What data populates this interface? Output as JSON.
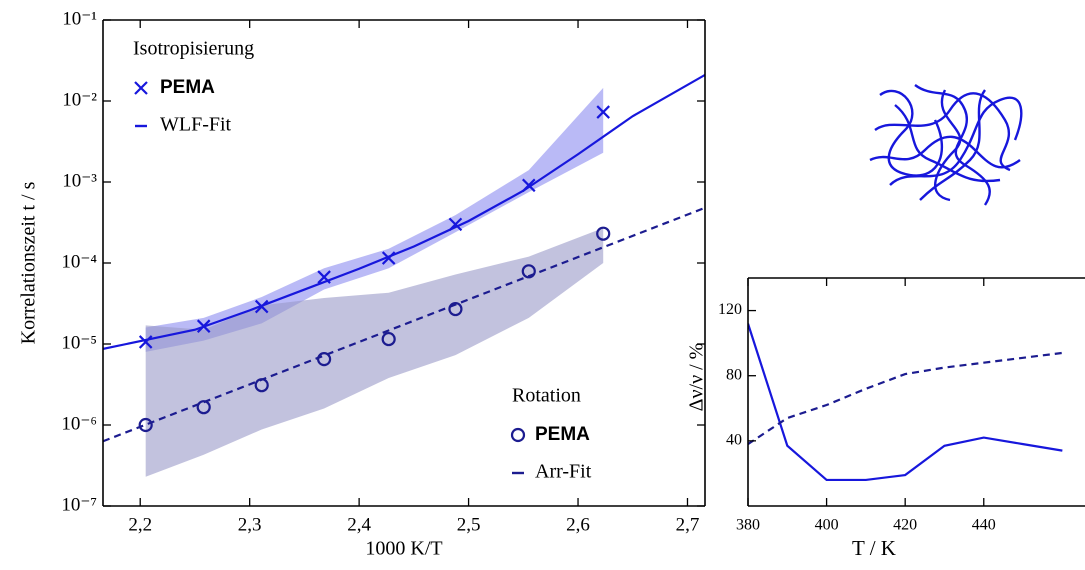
{
  "chart_data": [
    {
      "type": "scatter",
      "yscale": "log",
      "xlabel": "1000 K/T",
      "ylabel": "Korrelationszeit t / s",
      "xlim": [
        2.166,
        2.716
      ],
      "ylim": [
        1e-07,
        0.1
      ],
      "xticks": [
        {
          "value": 2.2,
          "label": "2,2"
        },
        {
          "value": 2.3,
          "label": "2,3"
        },
        {
          "value": 2.4,
          "label": "2,4"
        },
        {
          "value": 2.5,
          "label": "2,5"
        },
        {
          "value": 2.6,
          "label": "2,6"
        },
        {
          "value": 2.7,
          "label": "2,7"
        }
      ],
      "yticks": [
        {
          "value": 1e-07,
          "label": "10⁻⁷"
        },
        {
          "value": 1e-06,
          "label": "10⁻⁶"
        },
        {
          "value": 1e-05,
          "label": "10⁻⁵"
        },
        {
          "value": 0.0001,
          "label": "10⁻⁴"
        },
        {
          "value": 0.001,
          "label": "10⁻³"
        },
        {
          "value": 0.01,
          "label": "10⁻²"
        },
        {
          "value": 0.1,
          "label": "10⁻¹"
        }
      ],
      "legend_groups": [
        {
          "title": "Isotropisierung",
          "corner": "upper left"
        },
        {
          "title": "Rotation",
          "corner": "lower right"
        }
      ],
      "series": [
        {
          "name": "PEMA",
          "group": 0,
          "marker": "x",
          "color": "#1717dc",
          "band_color": "#8c8cf0",
          "x": [
            2.205,
            2.258,
            2.311,
            2.368,
            2.427,
            2.488,
            2.555,
            2.623
          ],
          "values": [
            1.06e-05,
            1.66e-05,
            2.9e-05,
            6.7e-05,
            0.000115,
            0.0003,
            0.00091,
            0.0073
          ],
          "upper": [
            1.6e-05,
            2.1e-05,
            3.8e-05,
            8.6e-05,
            0.00015,
            0.00039,
            0.0014,
            0.0145
          ],
          "lower": [
            8e-06,
            1.1e-05,
            1.8e-05,
            4.7e-05,
            8.6e-05,
            0.00024,
            0.00075,
            0.0023
          ]
        },
        {
          "name": "WLF-Fit",
          "group": 0,
          "line": "solid",
          "color": "#1717dc",
          "x": [
            2.166,
            2.25,
            2.3,
            2.35,
            2.4,
            2.45,
            2.5,
            2.55,
            2.6,
            2.65,
            2.716
          ],
          "values": [
            8.7e-06,
            1.5e-05,
            2.6e-05,
            4.7e-05,
            8.5e-05,
            0.00016,
            0.00033,
            0.00078,
            0.0022,
            0.0065,
            0.021
          ]
        },
        {
          "name": "PEMA",
          "group": 1,
          "marker": "o",
          "color": "#1c1c90",
          "band_color": "#9a9ac8",
          "x": [
            2.205,
            2.258,
            2.311,
            2.368,
            2.427,
            2.488,
            2.555,
            2.623
          ],
          "values": [
            1e-06,
            1.66e-06,
            3.1e-06,
            6.5e-06,
            1.15e-05,
            2.7e-05,
            7.9e-05,
            0.00023
          ],
          "upper": [
            1.7e-05,
            1.5e-05,
            3e-05,
            3.7e-05,
            4.3e-05,
            7.2e-05,
            0.00012,
            0.00027
          ],
          "lower": [
            2.3e-07,
            4.3e-07,
            8.8e-07,
            1.6e-06,
            3.8e-06,
            7.3e-06,
            2.1e-05,
            0.0001
          ]
        },
        {
          "name": "Arr-Fit",
          "group": 1,
          "line": "dashed",
          "color": "#1c1c90",
          "x": [
            2.166,
            2.716
          ],
          "values": [
            6.3e-07,
            0.00048
          ]
        }
      ]
    },
    {
      "type": "line",
      "xlabel": "T / K",
      "ylabel": "Δν/ν / %",
      "xlim": [
        380,
        465
      ],
      "ylim": [
        0,
        140
      ],
      "xticks": [
        380,
        400,
        420,
        440
      ],
      "yticks": [
        40,
        80,
        120
      ],
      "series": [
        {
          "line": "solid",
          "color": "#1717dc",
          "x": [
            380,
            390,
            400,
            410,
            420,
            430,
            440,
            450,
            460
          ],
          "values": [
            112,
            37,
            16,
            16,
            19,
            37,
            42,
            38,
            34
          ]
        },
        {
          "line": "dashed",
          "color": "#1c1c90",
          "x": [
            380,
            390,
            400,
            410,
            420,
            430,
            440,
            450,
            460
          ],
          "values": [
            38,
            54,
            62,
            72,
            81,
            85,
            88,
            91,
            94
          ]
        }
      ]
    }
  ]
}
